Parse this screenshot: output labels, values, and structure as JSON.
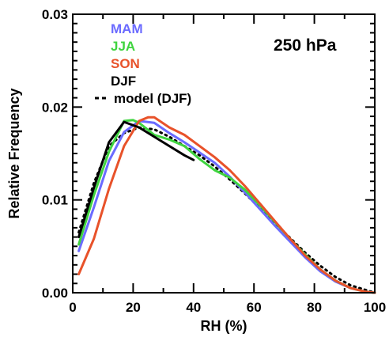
{
  "chart_data": {
    "type": "line",
    "title": "",
    "annotation": "250 hPa",
    "xlabel": "RH (%)",
    "ylabel": "Relative Frequency",
    "xlim": [
      0,
      100
    ],
    "ylim": [
      0,
      0.03
    ],
    "xticks": [
      0,
      20,
      40,
      60,
      80,
      100
    ],
    "xtick_labels": [
      "0",
      "20",
      "40",
      "60",
      "80",
      "100"
    ],
    "yticks": [
      0,
      0.01,
      0.02,
      0.03
    ],
    "ytick_labels": [
      "0.00",
      "0.01",
      "0.02",
      "0.03"
    ],
    "grid": false,
    "legend_position": "top-left",
    "series": [
      {
        "name": "MAM",
        "color": "#6b6bff",
        "style": "solid",
        "x": [
          2,
          7,
          12,
          17,
          22,
          27,
          32,
          37,
          42,
          47,
          52,
          57,
          62,
          67,
          72,
          77,
          82,
          87,
          92,
          97,
          100
        ],
        "y": [
          0.0045,
          0.0092,
          0.0142,
          0.0173,
          0.0185,
          0.0183,
          0.0172,
          0.0162,
          0.0151,
          0.014,
          0.0125,
          0.0108,
          0.009,
          0.0072,
          0.0055,
          0.0038,
          0.0023,
          0.0012,
          0.0005,
          0.0001,
          0.0
        ]
      },
      {
        "name": "JJA",
        "color": "#3fd43f",
        "style": "solid",
        "x": [
          2,
          7,
          12,
          17,
          20,
          22,
          27,
          32,
          37,
          42,
          47,
          52,
          57,
          62,
          67,
          72,
          77,
          82,
          87,
          92,
          97,
          100
        ],
        "y": [
          0.0052,
          0.0105,
          0.0152,
          0.0185,
          0.0186,
          0.0183,
          0.017,
          0.0165,
          0.0158,
          0.0144,
          0.0132,
          0.0124,
          0.0111,
          0.0094,
          0.0076,
          0.0058,
          0.0041,
          0.0025,
          0.0013,
          0.0005,
          0.0001,
          0.0
        ]
      },
      {
        "name": "SON",
        "color": "#e8522a",
        "style": "solid",
        "x": [
          2,
          7,
          12,
          17,
          22,
          25,
          27,
          32,
          37,
          42,
          47,
          52,
          57,
          62,
          67,
          72,
          77,
          82,
          87,
          92,
          97,
          100
        ],
        "y": [
          0.002,
          0.0058,
          0.0112,
          0.0158,
          0.0185,
          0.0189,
          0.0189,
          0.0178,
          0.017,
          0.0158,
          0.0146,
          0.0132,
          0.0115,
          0.0096,
          0.0077,
          0.0058,
          0.004,
          0.0025,
          0.0013,
          0.0005,
          0.0001,
          0.0
        ]
      },
      {
        "name": "DJF",
        "color": "#000000",
        "style": "solid",
        "x": [
          2,
          7,
          12,
          17,
          22,
          27,
          32,
          37,
          40
        ],
        "y": [
          0.006,
          0.0113,
          0.0162,
          0.0184,
          0.0178,
          0.0168,
          0.0158,
          0.0148,
          0.0143
        ]
      },
      {
        "name": "model (DJF)",
        "color": "#000000",
        "style": "dotted",
        "x": [
          2,
          7,
          12,
          17,
          22,
          27,
          32,
          37,
          42,
          47,
          52,
          57,
          62,
          67,
          72,
          77,
          82,
          87,
          92,
          97,
          100
        ],
        "y": [
          0.0065,
          0.0118,
          0.0158,
          0.0172,
          0.0178,
          0.0176,
          0.0168,
          0.0158,
          0.0148,
          0.0136,
          0.0122,
          0.0107,
          0.0091,
          0.0075,
          0.0059,
          0.0043,
          0.0029,
          0.0017,
          0.0008,
          0.0003,
          0.0
        ]
      }
    ]
  }
}
